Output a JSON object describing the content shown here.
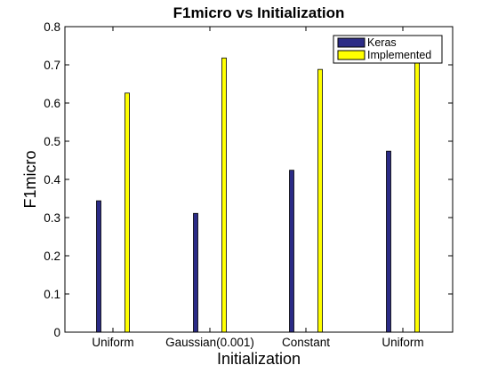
{
  "chart_data": {
    "type": "bar",
    "title": "F1micro vs Initialization",
    "xlabel": "Initialization",
    "ylabel": "F1micro",
    "categories": [
      "Uniform",
      "Gaussian(0.001)",
      "Constant",
      "Uniform"
    ],
    "series": [
      {
        "name": "Keras",
        "values": [
          0.344,
          0.311,
          0.424,
          0.474
        ],
        "color": "#2b2b86"
      },
      {
        "name": "Implemented",
        "values": [
          0.626,
          0.718,
          0.688,
          0.72
        ],
        "color": "#ffff00"
      }
    ],
    "ylim": [
      0,
      0.8
    ],
    "yticks": [
      "0",
      "0.1",
      "0.2",
      "0.3",
      "0.4",
      "0.5",
      "0.6",
      "0.7",
      "0.8"
    ],
    "grid": false,
    "legend_position": "top-right"
  }
}
